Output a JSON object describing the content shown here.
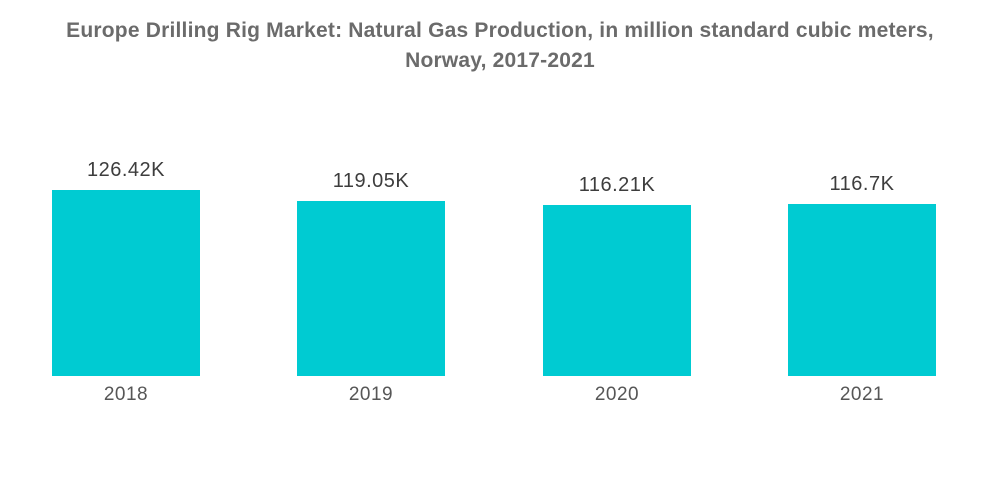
{
  "title_line1": "Europe Drilling Rig Market: Natural Gas Production, in million standard cubic meters,",
  "title_line2": "Norway, 2017-2021",
  "colors": {
    "background": "#ffffff",
    "bar": "#00cbd2",
    "title_text": "#6b6b6b",
    "value_label_text": "#3d3d3d",
    "year_label_text": "#565656"
  },
  "chart_data": {
    "type": "bar",
    "title": "Europe Drilling Rig Market: Natural Gas Production, in million standard cubic meters, Norway, 2017-2021",
    "subtitle": "",
    "categories": [
      "2018",
      "2019",
      "2020",
      "2021"
    ],
    "values": [
      126420,
      119050,
      116210,
      116700
    ],
    "value_labels": [
      "126.42K",
      "119.05K",
      "116.21K",
      "116.7K"
    ],
    "series_name": "Natural Gas Production",
    "unit": "million standard cubic meters",
    "xlabel": "",
    "ylabel": "",
    "ylim": [
      0,
      126420
    ],
    "grid": false,
    "axes_visible": false,
    "legend_position": "none",
    "bar_labels_position": "above"
  }
}
